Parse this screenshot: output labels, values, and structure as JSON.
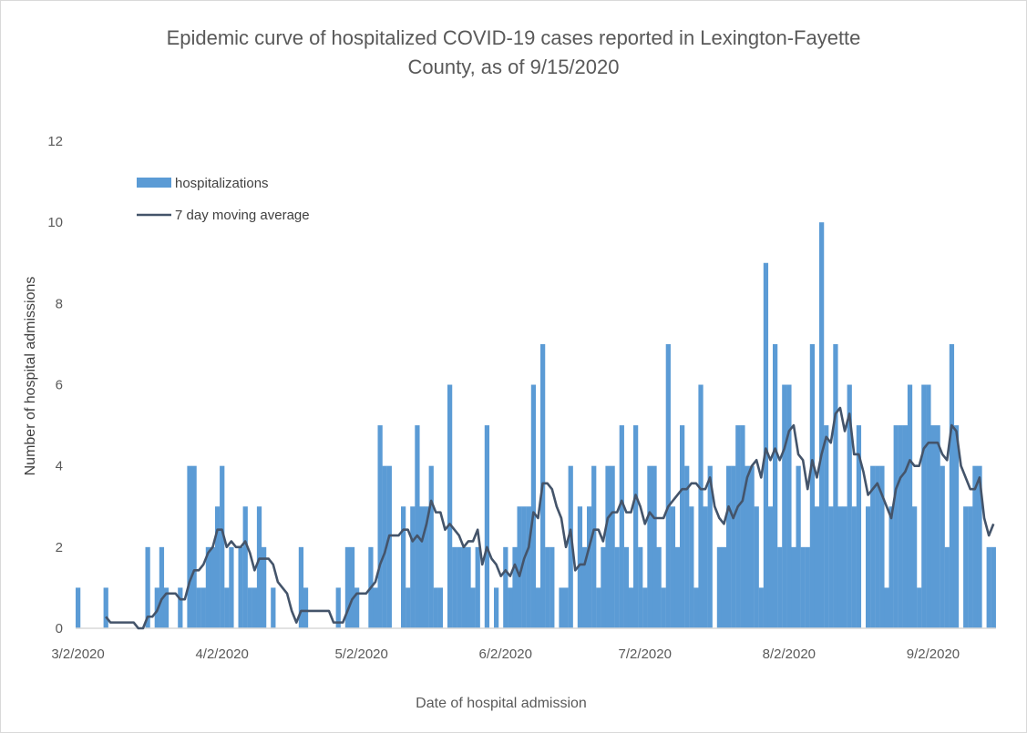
{
  "chart_data": {
    "type": "bar",
    "title": "Epidemic curve of hospitalized COVID-19 cases reported in Lexington-Fayette County, as of 9/15/2020",
    "title_lines": [
      "Epidemic curve of hospitalized COVID-19 cases reported in Lexington-Fayette",
      "County, as of 9/15/2020"
    ],
    "xlabel": "Date of hospital admission",
    "ylabel": "Number of hospital admissions",
    "ylim": [
      0,
      12
    ],
    "yticks": [
      0,
      2,
      4,
      6,
      8,
      10,
      12
    ],
    "x_start_date": "3/2/2020",
    "x_end_date": "9/15/2020",
    "xtick_labels": [
      "3/2/2020",
      "4/2/2020",
      "5/2/2020",
      "6/2/2020",
      "7/2/2020",
      "8/2/2020",
      "9/2/2020"
    ],
    "xtick_day_offsets": [
      0,
      31,
      61,
      92,
      122,
      153,
      184
    ],
    "grid": false,
    "legend_position": "top-left",
    "series": [
      {
        "name": "hospitalizations",
        "kind": "bar",
        "color": "#5B9BD5",
        "values": [
          1,
          0,
          0,
          0,
          0,
          0,
          1,
          0,
          0,
          0,
          0,
          0,
          0,
          0,
          0,
          2,
          0,
          1,
          2,
          1,
          0,
          0,
          1,
          0,
          4,
          4,
          1,
          1,
          2,
          2,
          3,
          4,
          1,
          2,
          0,
          2,
          3,
          1,
          1,
          3,
          2,
          0,
          1,
          0,
          0,
          0,
          0,
          0,
          2,
          1,
          0,
          0,
          0,
          0,
          0,
          0,
          1,
          0,
          2,
          2,
          1,
          0,
          0,
          2,
          1,
          5,
          4,
          4,
          0,
          0,
          3,
          1,
          3,
          5,
          3,
          3,
          4,
          1,
          1,
          0,
          6,
          2,
          2,
          2,
          2,
          1,
          2,
          0,
          5,
          0,
          1,
          0,
          2,
          1,
          2,
          3,
          3,
          3,
          6,
          1,
          7,
          2,
          2,
          0,
          1,
          1,
          4,
          0,
          3,
          2,
          3,
          4,
          1,
          2,
          4,
          4,
          2,
          5,
          2,
          1,
          5,
          2,
          1,
          4,
          4,
          2,
          1,
          7,
          3,
          2,
          5,
          4,
          3,
          1,
          6,
          3,
          4,
          0,
          2,
          2,
          4,
          4,
          5,
          5,
          4,
          4,
          3,
          1,
          9,
          3,
          7,
          2,
          6,
          6,
          2,
          4,
          2,
          2,
          7,
          3,
          10,
          5,
          3,
          7,
          3,
          3,
          6,
          3,
          5,
          0,
          3,
          4,
          4,
          4,
          1,
          3,
          5,
          5,
          5,
          6,
          3,
          1,
          6,
          6,
          5,
          5,
          4,
          2,
          7,
          5,
          0,
          3,
          3,
          4,
          4,
          0,
          2,
          2
        ]
      },
      {
        "name": "7 day moving average",
        "kind": "line",
        "color": "#44546A",
        "method": "trailing 7-day mean of hospitalizations"
      }
    ]
  },
  "legend": {
    "bar_label": "hospitalizations",
    "line_label": "7 day moving average"
  }
}
